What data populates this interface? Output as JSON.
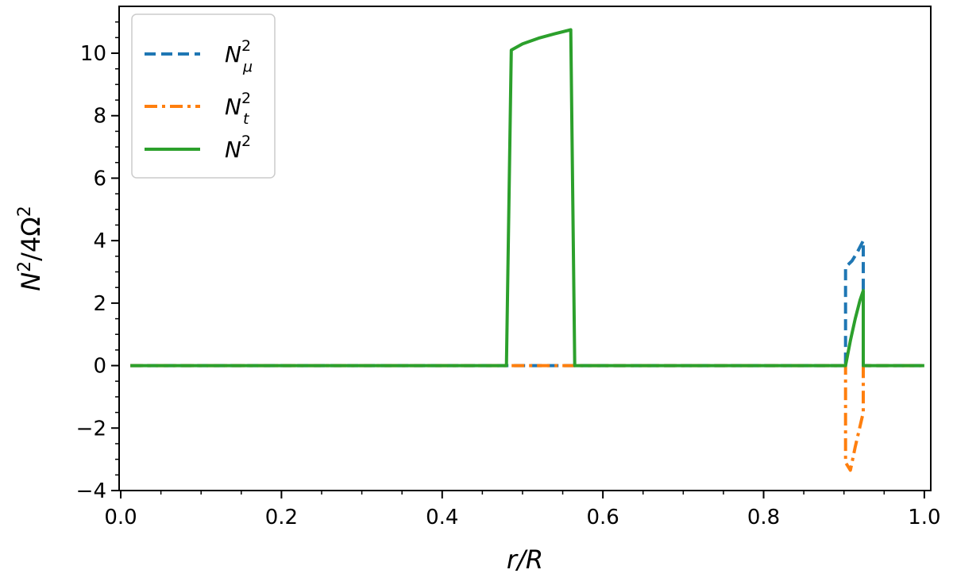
{
  "chart_data": {
    "type": "line",
    "title": "",
    "xlabel": "r/R",
    "ylabel": "N²/4Ω²",
    "xlim": [
      0.0,
      1.0
    ],
    "ylim": [
      -4,
      11.5
    ],
    "xticks": [
      0.0,
      0.2,
      0.4,
      0.6,
      0.8,
      1.0
    ],
    "xtick_labels": [
      "0.0",
      "0.2",
      "0.4",
      "0.6",
      "0.8",
      "1.0"
    ],
    "yticks": [
      -4,
      -2,
      0,
      2,
      4,
      6,
      8,
      10
    ],
    "ytick_labels": [
      "−4",
      "−2",
      "0",
      "2",
      "4",
      "6",
      "8",
      "10"
    ],
    "grid": false,
    "legend_position": "top-left",
    "series": [
      {
        "name": "N_μ^2",
        "legend_base": "N",
        "legend_sup": "2",
        "legend_sub": "μ",
        "color": "#1f77b4",
        "style": "dashed",
        "points": [
          [
            0.012,
            0
          ],
          [
            0.48,
            0
          ],
          [
            0.48,
            0
          ],
          [
            0.902,
            0
          ],
          [
            0.902,
            3.15
          ],
          [
            0.91,
            3.35
          ],
          [
            0.916,
            3.6
          ],
          [
            0.924,
            4.0
          ],
          [
            0.924,
            0
          ],
          [
            1.0,
            0
          ]
        ]
      },
      {
        "name": "N_t^2",
        "legend_base": "N",
        "legend_sup": "2",
        "legend_sub": "t",
        "color": "#ff7f0e",
        "style": "dashdot",
        "points": [
          [
            0.012,
            0
          ],
          [
            0.48,
            0
          ],
          [
            0.565,
            0
          ],
          [
            0.902,
            0
          ],
          [
            0.902,
            -3.1
          ],
          [
            0.908,
            -3.35
          ],
          [
            0.914,
            -2.6
          ],
          [
            0.924,
            -1.5
          ],
          [
            0.924,
            0
          ],
          [
            1.0,
            0
          ]
        ]
      },
      {
        "name": "N^2",
        "legend_base": "N",
        "legend_sup": "2",
        "legend_sub": "",
        "color": "#2ca02c",
        "style": "solid",
        "points": [
          [
            0.012,
            0
          ],
          [
            0.48,
            0
          ],
          [
            0.486,
            10.1
          ],
          [
            0.5,
            10.3
          ],
          [
            0.52,
            10.48
          ],
          [
            0.54,
            10.62
          ],
          [
            0.56,
            10.75
          ],
          [
            0.565,
            0
          ],
          [
            0.902,
            0
          ],
          [
            0.908,
            0.8
          ],
          [
            0.914,
            1.5
          ],
          [
            0.92,
            2.1
          ],
          [
            0.924,
            2.4
          ],
          [
            0.924,
            0
          ],
          [
            1.0,
            0
          ]
        ]
      }
    ]
  }
}
